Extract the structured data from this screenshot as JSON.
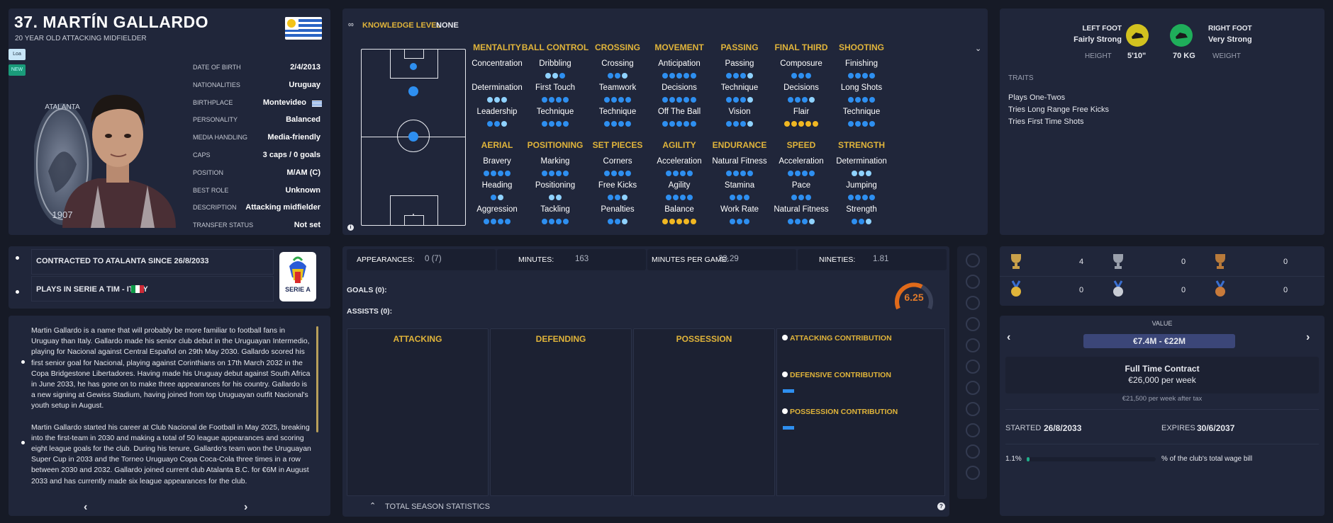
{
  "player": {
    "name": "37. MARTÍN GALLARDO",
    "subtitle": "20 YEAR OLD ATTACKING MIDFIELDER",
    "badge1": "Loa",
    "badge2": "NEW",
    "info": [
      {
        "k": "DATE OF BIRTH",
        "v": "2/4/2013"
      },
      {
        "k": "NATIONALITIES",
        "v": "Uruguay"
      },
      {
        "k": "BIRTHPLACE",
        "v": "Montevideo"
      },
      {
        "k": "PERSONALITY",
        "v": "Balanced"
      },
      {
        "k": "MEDIA HANDLING",
        "v": "Media-friendly"
      },
      {
        "k": "CAPS",
        "v": "3 caps / 0 goals"
      },
      {
        "k": "POSITION",
        "v": "M/AM (C)"
      },
      {
        "k": "BEST ROLE",
        "v": "Unknown"
      },
      {
        "k": "DESCRIPTION",
        "v": "Attacking midfielder"
      },
      {
        "k": "TRANSFER STATUS",
        "v": "Not set"
      }
    ],
    "club_crest_text": "ATALANTA",
    "club_year": "1907"
  },
  "knowledge": {
    "label": "KNOWLEDGE LEVEL",
    "value": "NONE"
  },
  "attributes": {
    "row1": [
      {
        "h": "MENTALITY",
        "items": [
          {
            "n": "Concentration",
            "d": "",
            "c": "b"
          },
          {
            "n": "Determination",
            "d": "lll",
            "c": "b"
          },
          {
            "n": "Leadership",
            "d": "bbl",
            "c": "b"
          }
        ],
        "d0": ""
      },
      {
        "h": "BALL CONTROL",
        "items": [
          {
            "n": "Dribbling",
            "d": "llb",
            "c": "b"
          },
          {
            "n": "First Touch",
            "d": "bbbb",
            "c": "b"
          },
          {
            "n": "Technique",
            "d": "bbbb",
            "c": "b"
          }
        ]
      },
      {
        "h": "CROSSING",
        "items": [
          {
            "n": "Crossing",
            "d": "bbl",
            "c": "b"
          },
          {
            "n": "Teamwork",
            "d": "bbbb",
            "c": "b"
          },
          {
            "n": "Technique",
            "d": "bbbb",
            "c": "b"
          }
        ]
      },
      {
        "h": "MOVEMENT",
        "items": [
          {
            "n": "Anticipation",
            "d": "bbbbb",
            "c": "b"
          },
          {
            "n": "Decisions",
            "d": "bbbbb",
            "c": "b"
          },
          {
            "n": "Off The Ball",
            "d": "bbbbb",
            "c": "b"
          }
        ]
      },
      {
        "h": "PASSING",
        "items": [
          {
            "n": "Passing",
            "d": "bbbl",
            "c": "b"
          },
          {
            "n": "Technique",
            "d": "bbbl",
            "c": "b"
          },
          {
            "n": "Vision",
            "d": "bbbl",
            "c": "b"
          }
        ]
      },
      {
        "h": "FINAL THIRD",
        "items": [
          {
            "n": "Composure",
            "d": "bbb",
            "c": "b"
          },
          {
            "n": "Decisions",
            "d": "bbbl",
            "c": "b"
          },
          {
            "n": "Flair",
            "d": "ggggg",
            "c": "g"
          }
        ]
      },
      {
        "h": "SHOOTING",
        "items": [
          {
            "n": "Finishing",
            "d": "bbbb",
            "c": "b"
          },
          {
            "n": "Long Shots",
            "d": "bbbb",
            "c": "b"
          },
          {
            "n": "Technique",
            "d": "bbbb",
            "c": "b"
          }
        ]
      }
    ],
    "row2": [
      {
        "h": "AERIAL",
        "items": [
          {
            "n": "Bravery",
            "d": "bbbb",
            "c": "b"
          },
          {
            "n": "Heading",
            "d": "bl",
            "c": "b"
          },
          {
            "n": "Aggression",
            "d": "bbbb",
            "c": "b"
          }
        ]
      },
      {
        "h": "POSITIONING",
        "items": [
          {
            "n": "Marking",
            "d": "bbbb",
            "c": "b"
          },
          {
            "n": "Positioning",
            "d": "ll",
            "c": "b"
          },
          {
            "n": "Tackling",
            "d": "bbbb",
            "c": "b"
          }
        ]
      },
      {
        "h": "SET PIECES",
        "items": [
          {
            "n": "Corners",
            "d": "bbbb",
            "c": "b"
          },
          {
            "n": "Free Kicks",
            "d": "bbl",
            "c": "b"
          },
          {
            "n": "Penalties",
            "d": "bbl",
            "c": "b"
          }
        ]
      },
      {
        "h": "AGILITY",
        "items": [
          {
            "n": "Acceleration",
            "d": "bbbb",
            "c": "b"
          },
          {
            "n": "Agility",
            "d": "bbbb",
            "c": "b"
          },
          {
            "n": "Balance",
            "d": "ggggg",
            "c": "g"
          }
        ]
      },
      {
        "h": "ENDURANCE",
        "items": [
          {
            "n": "Natural Fitness",
            "d": "bbbb",
            "c": "b"
          },
          {
            "n": "Stamina",
            "d": "bbb",
            "c": "b"
          },
          {
            "n": "Work Rate",
            "d": "bbb",
            "c": "b"
          }
        ]
      },
      {
        "h": "SPEED",
        "items": [
          {
            "n": "Acceleration",
            "d": "bbbb",
            "c": "b"
          },
          {
            "n": "Pace",
            "d": "bbb",
            "c": "b"
          },
          {
            "n": "Natural Fitness",
            "d": "bbbl",
            "c": "b"
          }
        ]
      },
      {
        "h": "STRENGTH",
        "items": [
          {
            "n": "Determination",
            "d": "lll",
            "c": "b"
          },
          {
            "n": "Jumping",
            "d": "bbbb",
            "c": "b"
          },
          {
            "n": "Strength",
            "d": "bbl",
            "c": "b"
          }
        ]
      }
    ]
  },
  "physical": {
    "left_foot_label": "LEFT FOOT",
    "left_foot_value": "Fairly Strong",
    "right_foot_label": "RIGHT FOOT",
    "right_foot_value": "Very Strong",
    "height_label": "HEIGHT",
    "height_value": "5'10\"",
    "weight_value": "70 KG",
    "weight_label": "WEIGHT",
    "traits_label": "TRAITS",
    "traits": [
      "Plays One-Twos",
      "Tries Long Range Free Kicks",
      "Tries First Time Shots"
    ]
  },
  "contract_info": {
    "line1": "CONTRACTED TO ATALANTA SINCE 26/8/2033",
    "line2": "PLAYS IN SERIE A TIM - ITALY",
    "league_badge": "SERIE A"
  },
  "bio": {
    "p1": "Martin Gallardo is a name that will probably be more familiar to football fans in Uruguay than Italy. Gallardo made his senior club debut in the Uruguayan Intermedio, playing for Nacional against Central Español on 29th May 2030. Gallardo scored his first senior goal for Nacional, playing against Corinthians on 17th March 2032 in the Copa Bridgestone Libertadores. Having made his Uruguay debut against South Africa in June 2033, he has gone on to make three appearances for his country. Gallardo is a new signing at Gewiss Stadium, having joined from top Uruguayan outfit Nacional's youth setup in August.",
    "p2": "Martin Gallardo started his career at Club Nacional de Football in May 2025, breaking into the first-team in 2030 and making a total of 50 league appearances and scoring eight league goals for the club. During his tenure, Gallardo's team won the Uruguayan Super Cup in 2033 and the Torneo Uruguayo Copa Coca-Cola three times in a row between 2030 and 2032. Gallardo joined current club Atalanta B.C. for €6M in August 2033 and has currently made six league appearances for the club.",
    "prev": "‹",
    "next": "›"
  },
  "stats": {
    "appearances_label": "APPEARANCES:",
    "appearances": "0 (7)",
    "minutes_label": "MINUTES:",
    "minutes": "163",
    "mpg_label": "MINUTES PER GAME:",
    "mpg": "23.29",
    "nineties_label": "NINETIES:",
    "nineties": "1.81",
    "goals": "GOALS (0):",
    "assists": "ASSISTS (0):",
    "rating": "6.25",
    "rating_fraction": 0.62,
    "cols": [
      "ATTACKING",
      "DEFENDING",
      "POSSESSION"
    ],
    "attacking_contribution": "ATTACKING CONTRIBUTION",
    "defensive_contribution": "DEFENSIVE CONTRIBUTION",
    "possession_contribution": "POSSESSION CONTRIBUTION",
    "footer": "TOTAL SEASON STATISTICS"
  },
  "trophies": [
    {
      "icon": "gold-trophy-icon",
      "count": "4"
    },
    {
      "icon": "silver-trophy-icon",
      "count": "0"
    },
    {
      "icon": "bronze-trophy-icon",
      "count": "0"
    },
    {
      "icon": "gold-medal-icon",
      "count": "0"
    },
    {
      "icon": "silver-medal-icon",
      "count": "0"
    },
    {
      "icon": "bronze-medal-icon",
      "count": "0"
    }
  ],
  "value": {
    "label": "VALUE",
    "range": "€7.4M - €22M",
    "contract_type": "Full Time Contract",
    "wage": "€26,000 per week",
    "after_tax": "€21,500 per week after tax",
    "started_label": "STARTED",
    "started": "26/8/2033",
    "expires_label": "EXPIRES",
    "expires": "30/6/2037",
    "wage_pct": "1.1%",
    "wage_pct_label": "% of the club's total wage bill",
    "wage_fraction": 0.011
  },
  "colors": {
    "accent_gold": "#e0b43a",
    "dot_blue": "#2e8ff0",
    "panel": "#20263a",
    "bg": "#161a26"
  }
}
